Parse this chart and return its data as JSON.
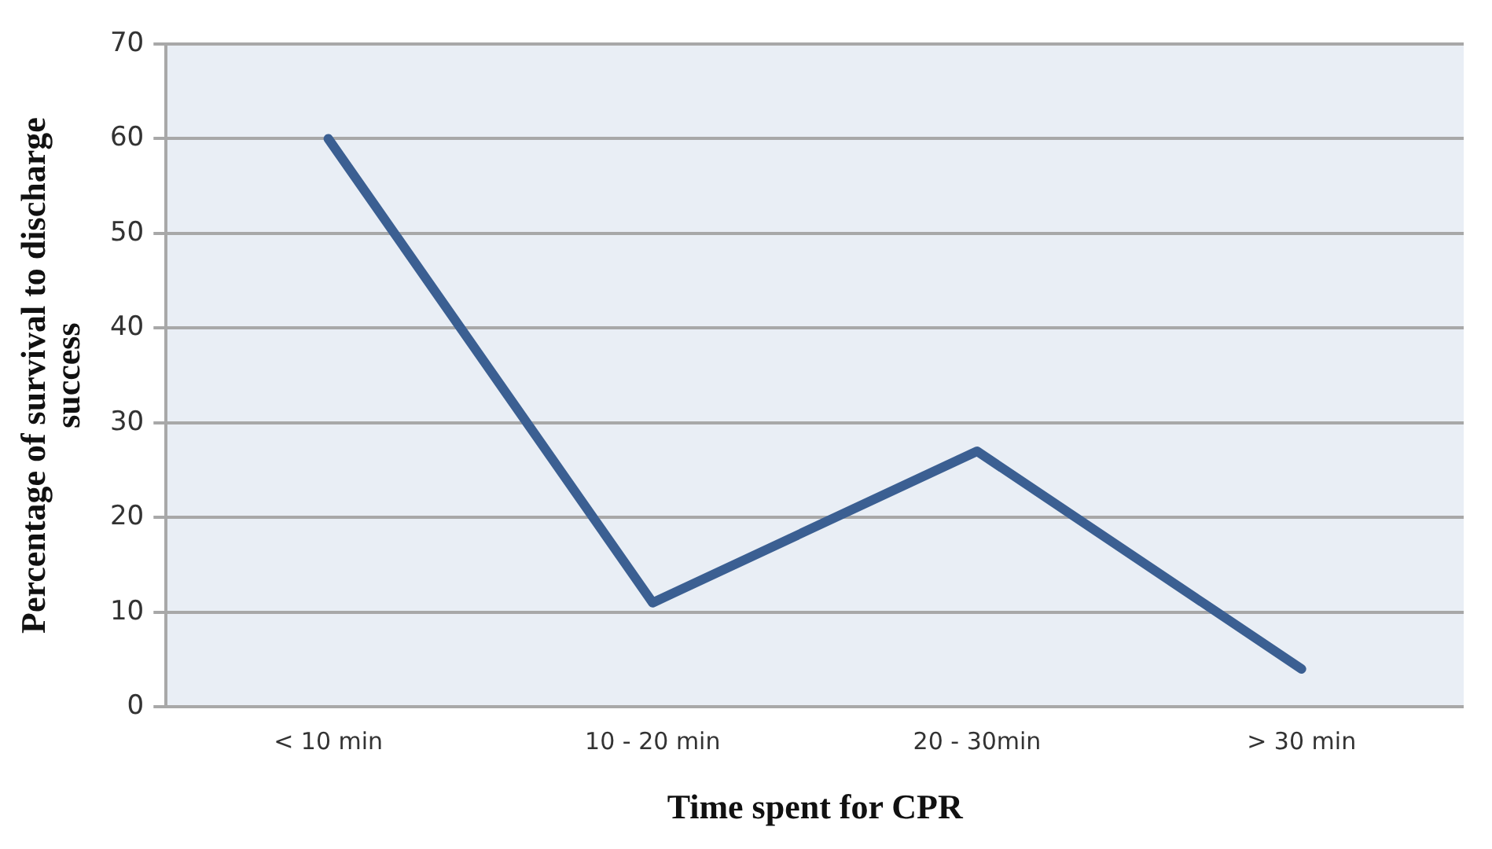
{
  "chart_data": {
    "type": "line",
    "xlabel": "Time spent for CPR",
    "ylabel": "Percentage of survival to discharge success",
    "categories": [
      "< 10 min",
      "10 - 20 min",
      "20 - 30min",
      "> 30 min"
    ],
    "series": [
      {
        "color": "#3b5f92",
        "values": [
          60,
          11,
          27,
          4
        ]
      }
    ],
    "ylim": [
      0,
      70
    ],
    "yticks": [
      0,
      10,
      20,
      30,
      40,
      50,
      60,
      70
    ],
    "grid": "y",
    "legend": false,
    "marker": "none",
    "line_style": "solid"
  }
}
